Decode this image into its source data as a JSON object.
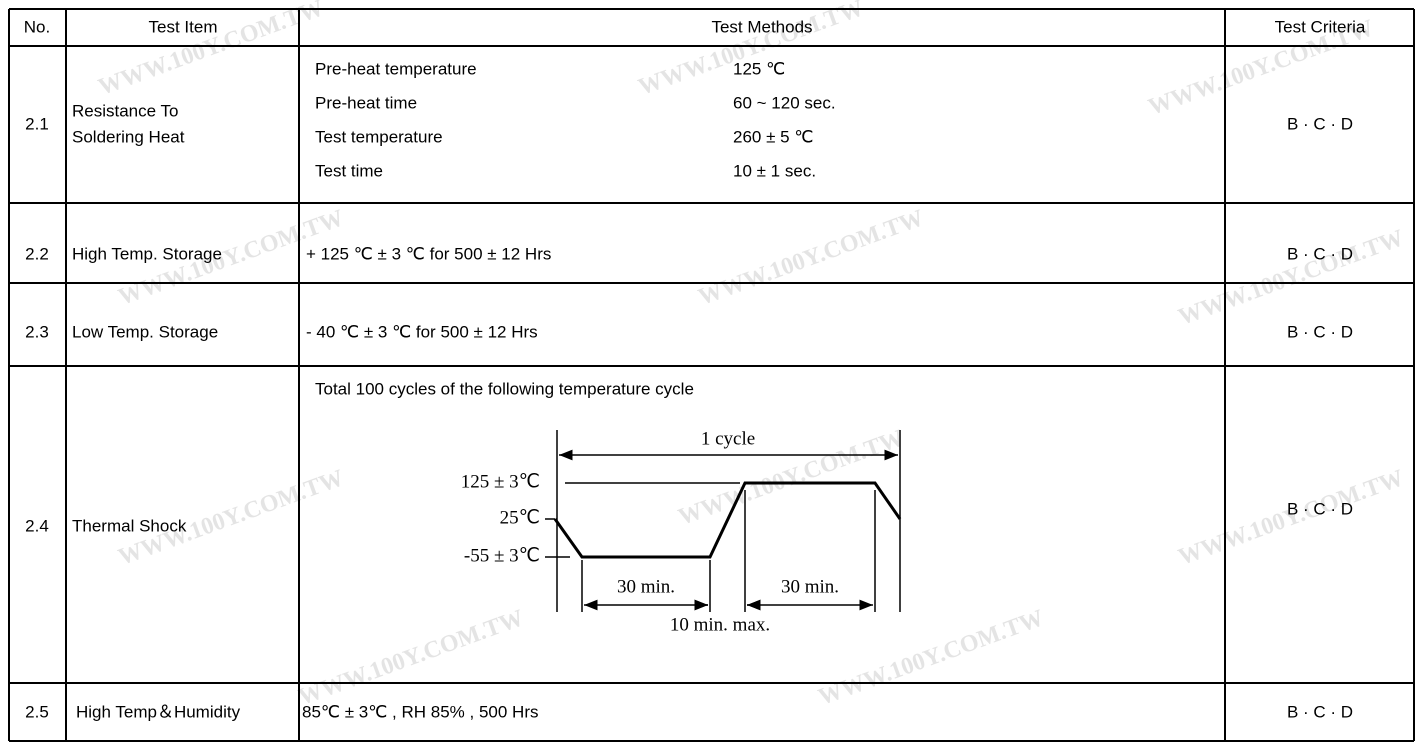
{
  "header": [
    "No.",
    "Test  Item",
    "Test Methods",
    "Test Criteria"
  ],
  "watermark": "WWW.100Y.COM.TW",
  "rows": [
    {
      "no": "2.1",
      "item": [
        "Resistance To",
        "Soldering Heat"
      ],
      "methods": [
        [
          "Pre-heat temperature",
          "125 ℃"
        ],
        [
          "Pre-heat time",
          "60 ~ 120 sec."
        ],
        [
          "Test temperature",
          "260 ± 5 ℃"
        ],
        [
          "Test time",
          "10 ± 1 sec."
        ]
      ],
      "criteria": "B · C · D"
    },
    {
      "no": "2.2",
      "item": [
        "High Temp. Storage"
      ],
      "methods": "+ 125 ℃ ± 3 ℃ for 500 ± 12 Hrs",
      "criteria": "B · C · D"
    },
    {
      "no": "2.3",
      "item": [
        "Low Temp. Storage"
      ],
      "methods": "- 40 ℃ ± 3 ℃ for 500 ± 12 Hrs",
      "criteria": "B · C · D"
    },
    {
      "no": "2.4",
      "item": [
        "Thermal Shock"
      ],
      "methods": "Total 100 cycles of the following temperature cycle",
      "diagram": {
        "cycle": "1  cycle",
        "high": "125 ± 3℃",
        "mid": "25℃",
        "low": "-55 ± 3℃",
        "dwell_low": "30 min.",
        "dwell_high": "30 min.",
        "transfer": "10 min. max."
      },
      "criteria": "B · C · D"
    },
    {
      "no": "2.5",
      "item": [
        "High Temp＆Humidity"
      ],
      "methods": "85℃ ± 3℃  , RH 85% , 500 Hrs",
      "criteria": "B · C · D"
    }
  ]
}
